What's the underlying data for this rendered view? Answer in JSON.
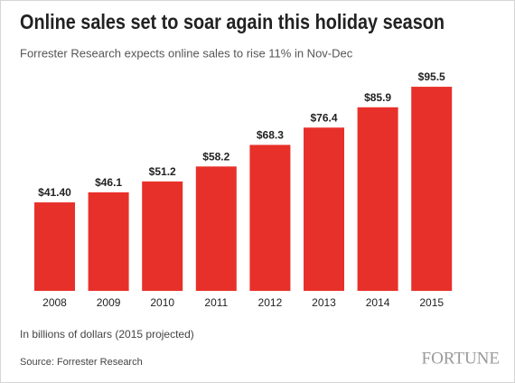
{
  "chart_data": {
    "type": "bar",
    "title": "Online sales set to soar again this holiday season",
    "subtitle": "Forrester Research expects online sales to rise 11% in Nov-Dec",
    "categories": [
      "2008",
      "2009",
      "2010",
      "2011",
      "2012",
      "2013",
      "2014",
      "2015"
    ],
    "values": [
      41.4,
      46.1,
      51.2,
      58.2,
      68.3,
      76.4,
      85.9,
      95.5
    ],
    "value_labels": [
      "$41.40",
      "$46.1",
      "$51.2",
      "$58.2",
      "$68.3",
      "$76.4",
      "$85.9",
      "$95.5"
    ],
    "color": "#e8302a",
    "note": "In billions of dollars (2015 projected)",
    "source": "Source: Forrester Research",
    "brand": "FORTUNE"
  }
}
